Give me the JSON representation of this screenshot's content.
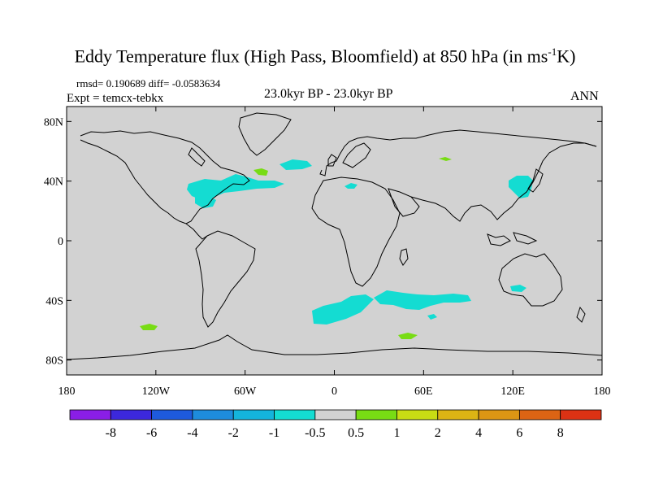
{
  "title": {
    "main": "Eddy Temperature flux (High Pass, Bloomfield) at 850 hPa (in ms",
    "sup": "-1",
    "unit_end": "K)"
  },
  "stats": {
    "rmsd_line": "rmsd= 0.190689 diff= -0.0583634"
  },
  "experiment": "Expt = temcx-tebkx",
  "period": "23.0kyr BP - 23.0kyr BP",
  "season": "ANN",
  "axes": {
    "lat_ticks": [
      {
        "lat": 80,
        "label": "80N"
      },
      {
        "lat": 40,
        "label": "40N"
      },
      {
        "lat": 0,
        "label": "0"
      },
      {
        "lat": -40,
        "label": "40S"
      },
      {
        "lat": -80,
        "label": "80S"
      }
    ],
    "lon_ticks": [
      {
        "lon": -180,
        "label": "180"
      },
      {
        "lon": -120,
        "label": "120W"
      },
      {
        "lon": -60,
        "label": "60W"
      },
      {
        "lon": 0,
        "label": "0"
      },
      {
        "lon": 60,
        "label": "60E"
      },
      {
        "lon": 120,
        "label": "120E"
      },
      {
        "lon": 180,
        "label": "180"
      }
    ],
    "lat_range": [
      -90,
      90
    ],
    "lon_range": [
      -180,
      180
    ]
  },
  "colorbar": {
    "colors": [
      "#8a1ee6",
      "#3c28dc",
      "#1e5adc",
      "#1e8cdc",
      "#14b4dc",
      "#14dcd2",
      "#d2d2d2",
      "#78dc14",
      "#c8dc14",
      "#dcb414",
      "#dc9614",
      "#dc6414",
      "#dc3214"
    ],
    "labels": [
      "-8",
      "-6",
      "-4",
      "-2",
      "-1",
      "-0.5",
      "0.5",
      "1",
      "2",
      "4",
      "6",
      "8"
    ]
  },
  "colors": {
    "background": "#d2d2d2",
    "negative_anomaly": "#14dcd2",
    "positive_anomaly": "#78dc14",
    "coast": "#000000"
  }
}
